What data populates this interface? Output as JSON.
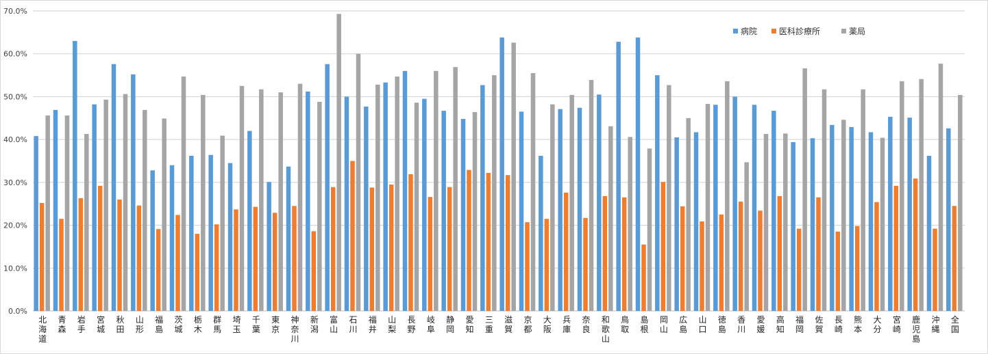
{
  "chart_data": {
    "type": "bar",
    "title": "",
    "xlabel": "",
    "ylabel": "",
    "ylim": [
      0,
      70
    ],
    "y_tick_labels": [
      "0.0%",
      "10.0%",
      "20.0%",
      "30.0%",
      "40.0%",
      "50.0%",
      "60.0%",
      "70.0%"
    ],
    "grid": true,
    "legend_position": "top-right",
    "categories": [
      "北海道",
      "青森",
      "岩手",
      "宮城",
      "秋田",
      "山形",
      "福島",
      "茨城",
      "栃木",
      "群馬",
      "埼玉",
      "千葉",
      "東京",
      "神奈川",
      "新潟",
      "富山",
      "石川",
      "福井",
      "山梨",
      "長野",
      "岐阜",
      "静岡",
      "愛知",
      "三重",
      "滋賀",
      "京都",
      "大阪",
      "兵庫",
      "奈良",
      "和歌山",
      "鳥取",
      "島根",
      "岡山",
      "広島",
      "山口",
      "徳島",
      "香川",
      "愛媛",
      "高知",
      "福岡",
      "佐賀",
      "長崎",
      "熊本",
      "大分",
      "宮崎",
      "鹿児島",
      "沖縄",
      "全国"
    ],
    "series": [
      {
        "name": "病院",
        "color": "#5B9BD5",
        "values": [
          40.8,
          46.9,
          63.0,
          48.2,
          57.6,
          55.2,
          32.8,
          34.0,
          36.2,
          36.4,
          34.5,
          42.0,
          30.1,
          33.7,
          51.2,
          57.6,
          50.0,
          47.7,
          53.3,
          56.0,
          49.5,
          46.7,
          44.8,
          52.7,
          63.8,
          46.5,
          36.2,
          47.1,
          47.4,
          50.5,
          62.8,
          63.8,
          55.0,
          40.5,
          41.7,
          48.1,
          50.0,
          48.1,
          46.7,
          39.4,
          40.3,
          43.4,
          42.9,
          41.7,
          45.3,
          45.1,
          36.2,
          42.6
        ]
      },
      {
        "name": "医科診療所",
        "color": "#ED7D31",
        "values": [
          25.2,
          21.5,
          26.3,
          29.2,
          26.0,
          24.6,
          19.1,
          22.4,
          18.0,
          20.2,
          23.7,
          24.3,
          22.9,
          24.5,
          18.6,
          28.9,
          35.0,
          28.8,
          29.5,
          31.9,
          26.6,
          28.9,
          32.9,
          32.2,
          31.7,
          20.7,
          21.5,
          27.6,
          21.7,
          26.8,
          26.5,
          15.5,
          30.1,
          24.4,
          20.9,
          22.5,
          25.5,
          23.4,
          26.8,
          19.2,
          26.5,
          18.5,
          19.8,
          25.4,
          29.2,
          30.9,
          19.2,
          24.5
        ]
      },
      {
        "name": "薬局",
        "color": "#A5A5A5",
        "values": [
          45.6,
          45.6,
          41.3,
          49.3,
          50.6,
          46.9,
          44.9,
          54.7,
          50.4,
          40.9,
          52.5,
          51.7,
          51.0,
          53.0,
          48.8,
          69.3,
          60.0,
          52.8,
          54.7,
          48.6,
          56.0,
          56.9,
          46.4,
          55.0,
          62.6,
          55.5,
          48.2,
          50.4,
          53.9,
          43.1,
          40.6,
          37.9,
          52.7,
          45.0,
          48.3,
          53.6,
          34.7,
          41.3,
          41.4,
          56.6,
          51.7,
          44.6,
          51.7,
          40.4,
          53.6,
          54.1,
          57.7,
          50.4
        ]
      }
    ]
  }
}
